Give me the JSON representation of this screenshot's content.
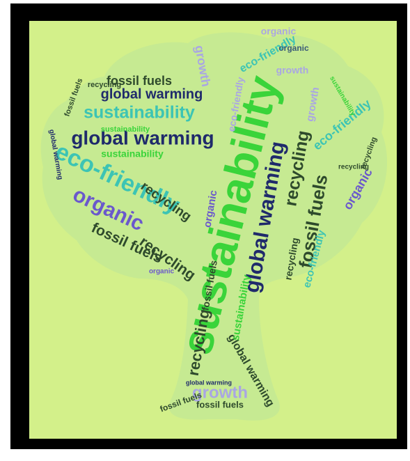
{
  "words": [
    "sustainability",
    "global warming",
    "sustainability",
    "eco-friendly",
    "organic",
    "global warming",
    "fossil fuels",
    "recycling",
    "fossil fuels",
    "global warming",
    "recycling",
    "recycling",
    "fossil fuels",
    "growth",
    "recycling",
    "global warming",
    "fossil fuels",
    "eco-friendly",
    "growth",
    "organic",
    "eco-friendly",
    "organic",
    "sustainability",
    "sustainability",
    "fossil fuels",
    "recycling",
    "eco-friendly",
    "global warming",
    "sustainability",
    "organic",
    "organic",
    "growth",
    "fossil fuels",
    "global warming",
    "recycling",
    "sustainability",
    "organic",
    "recycling",
    "growth",
    "eco-friendly",
    "fossil fuels",
    "recycling"
  ]
}
